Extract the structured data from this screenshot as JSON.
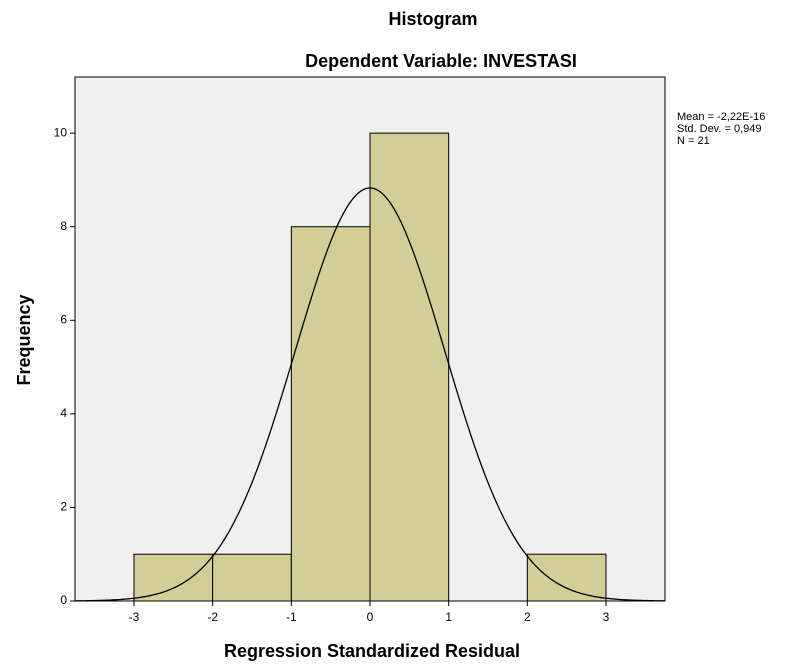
{
  "chart_data": {
    "type": "histogram",
    "title": "Histogram",
    "subtitle": "Dependent Variable: INVESTASI",
    "x_label": "Regression Standardized Residual",
    "y_label": "Frequency",
    "bins": [
      -3,
      -2,
      -1,
      0,
      1,
      2,
      3
    ],
    "values": [
      1,
      1,
      8,
      10,
      0,
      1
    ],
    "color": "#d3ce97",
    "xlim": [
      -3.75,
      3.75
    ],
    "xticks": [
      -3,
      -2,
      -1,
      0,
      1,
      2,
      3
    ],
    "ylim": [
      0,
      11.2
    ],
    "yticks": [
      0,
      2,
      4,
      6,
      8,
      10
    ],
    "stats": [
      {
        "value": -2.22e-16,
        "label": "Mean = -2,22E-16"
      },
      {
        "value": 0.949,
        "label": "Std. Dev. = 0,949"
      },
      {
        "value": 21,
        "label": "N = 21"
      }
    ]
  }
}
